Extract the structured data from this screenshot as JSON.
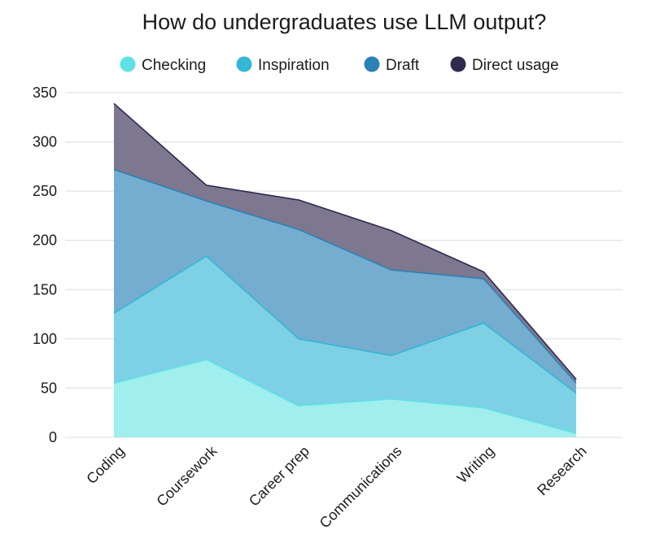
{
  "chart_data": {
    "type": "area",
    "stacked": true,
    "title": "How do undergraduates use LLM output?",
    "xlabel": "",
    "ylabel": "",
    "ylim": [
      0,
      350
    ],
    "yticks": [
      0,
      50,
      100,
      150,
      200,
      250,
      300,
      350
    ],
    "grid": true,
    "legend_position": "top",
    "categories": [
      "Coding",
      "Coursework",
      "Career prep",
      "Communications",
      "Writing",
      "Research"
    ],
    "series": [
      {
        "name": "Checking",
        "color": "#5ee0e6",
        "fill": "#a0eeee",
        "values": [
          55,
          79,
          32,
          39,
          30,
          4
        ]
      },
      {
        "name": "Inspiration",
        "color": "#35b6d6",
        "fill": "#7ed0e4",
        "values": [
          71,
          105,
          68,
          44,
          86,
          41
        ]
      },
      {
        "name": "Draft",
        "color": "#2b82b4",
        "fill": "#74adcf",
        "values": [
          146,
          56,
          111,
          87,
          45,
          10
        ]
      },
      {
        "name": "Direct usage",
        "color": "#312a4f",
        "fill": "#7e7790",
        "values": [
          67,
          16,
          30,
          40,
          7,
          4
        ]
      }
    ]
  }
}
